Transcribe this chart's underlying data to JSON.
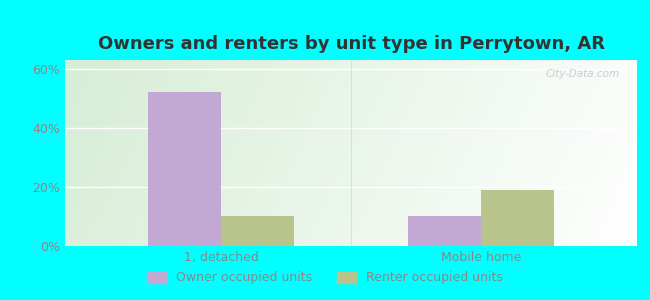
{
  "title": "Owners and renters by unit type in Perrytown, AR",
  "categories": [
    "1, detached",
    "Mobile home"
  ],
  "owner_values": [
    52,
    10
  ],
  "renter_values": [
    10,
    19
  ],
  "owner_color": "#c4a8d4",
  "renter_color": "#b9c48c",
  "ylim": [
    0,
    63
  ],
  "yticks": [
    0,
    20,
    40,
    60
  ],
  "ytick_labels": [
    "0%",
    "20%",
    "40%",
    "60%"
  ],
  "bar_width": 0.28,
  "legend_owner": "Owner occupied units",
  "legend_renter": "Renter occupied units",
  "title_fontsize": 13,
  "tick_color": "#aaaaaa",
  "label_color": "#888888",
  "watermark": "City-Data.com",
  "outer_bg": "#00ffff",
  "grid_color": "#dddddd",
  "bg_top_left": "#d4e8d0",
  "bg_bottom_right": "#f0f8f0"
}
